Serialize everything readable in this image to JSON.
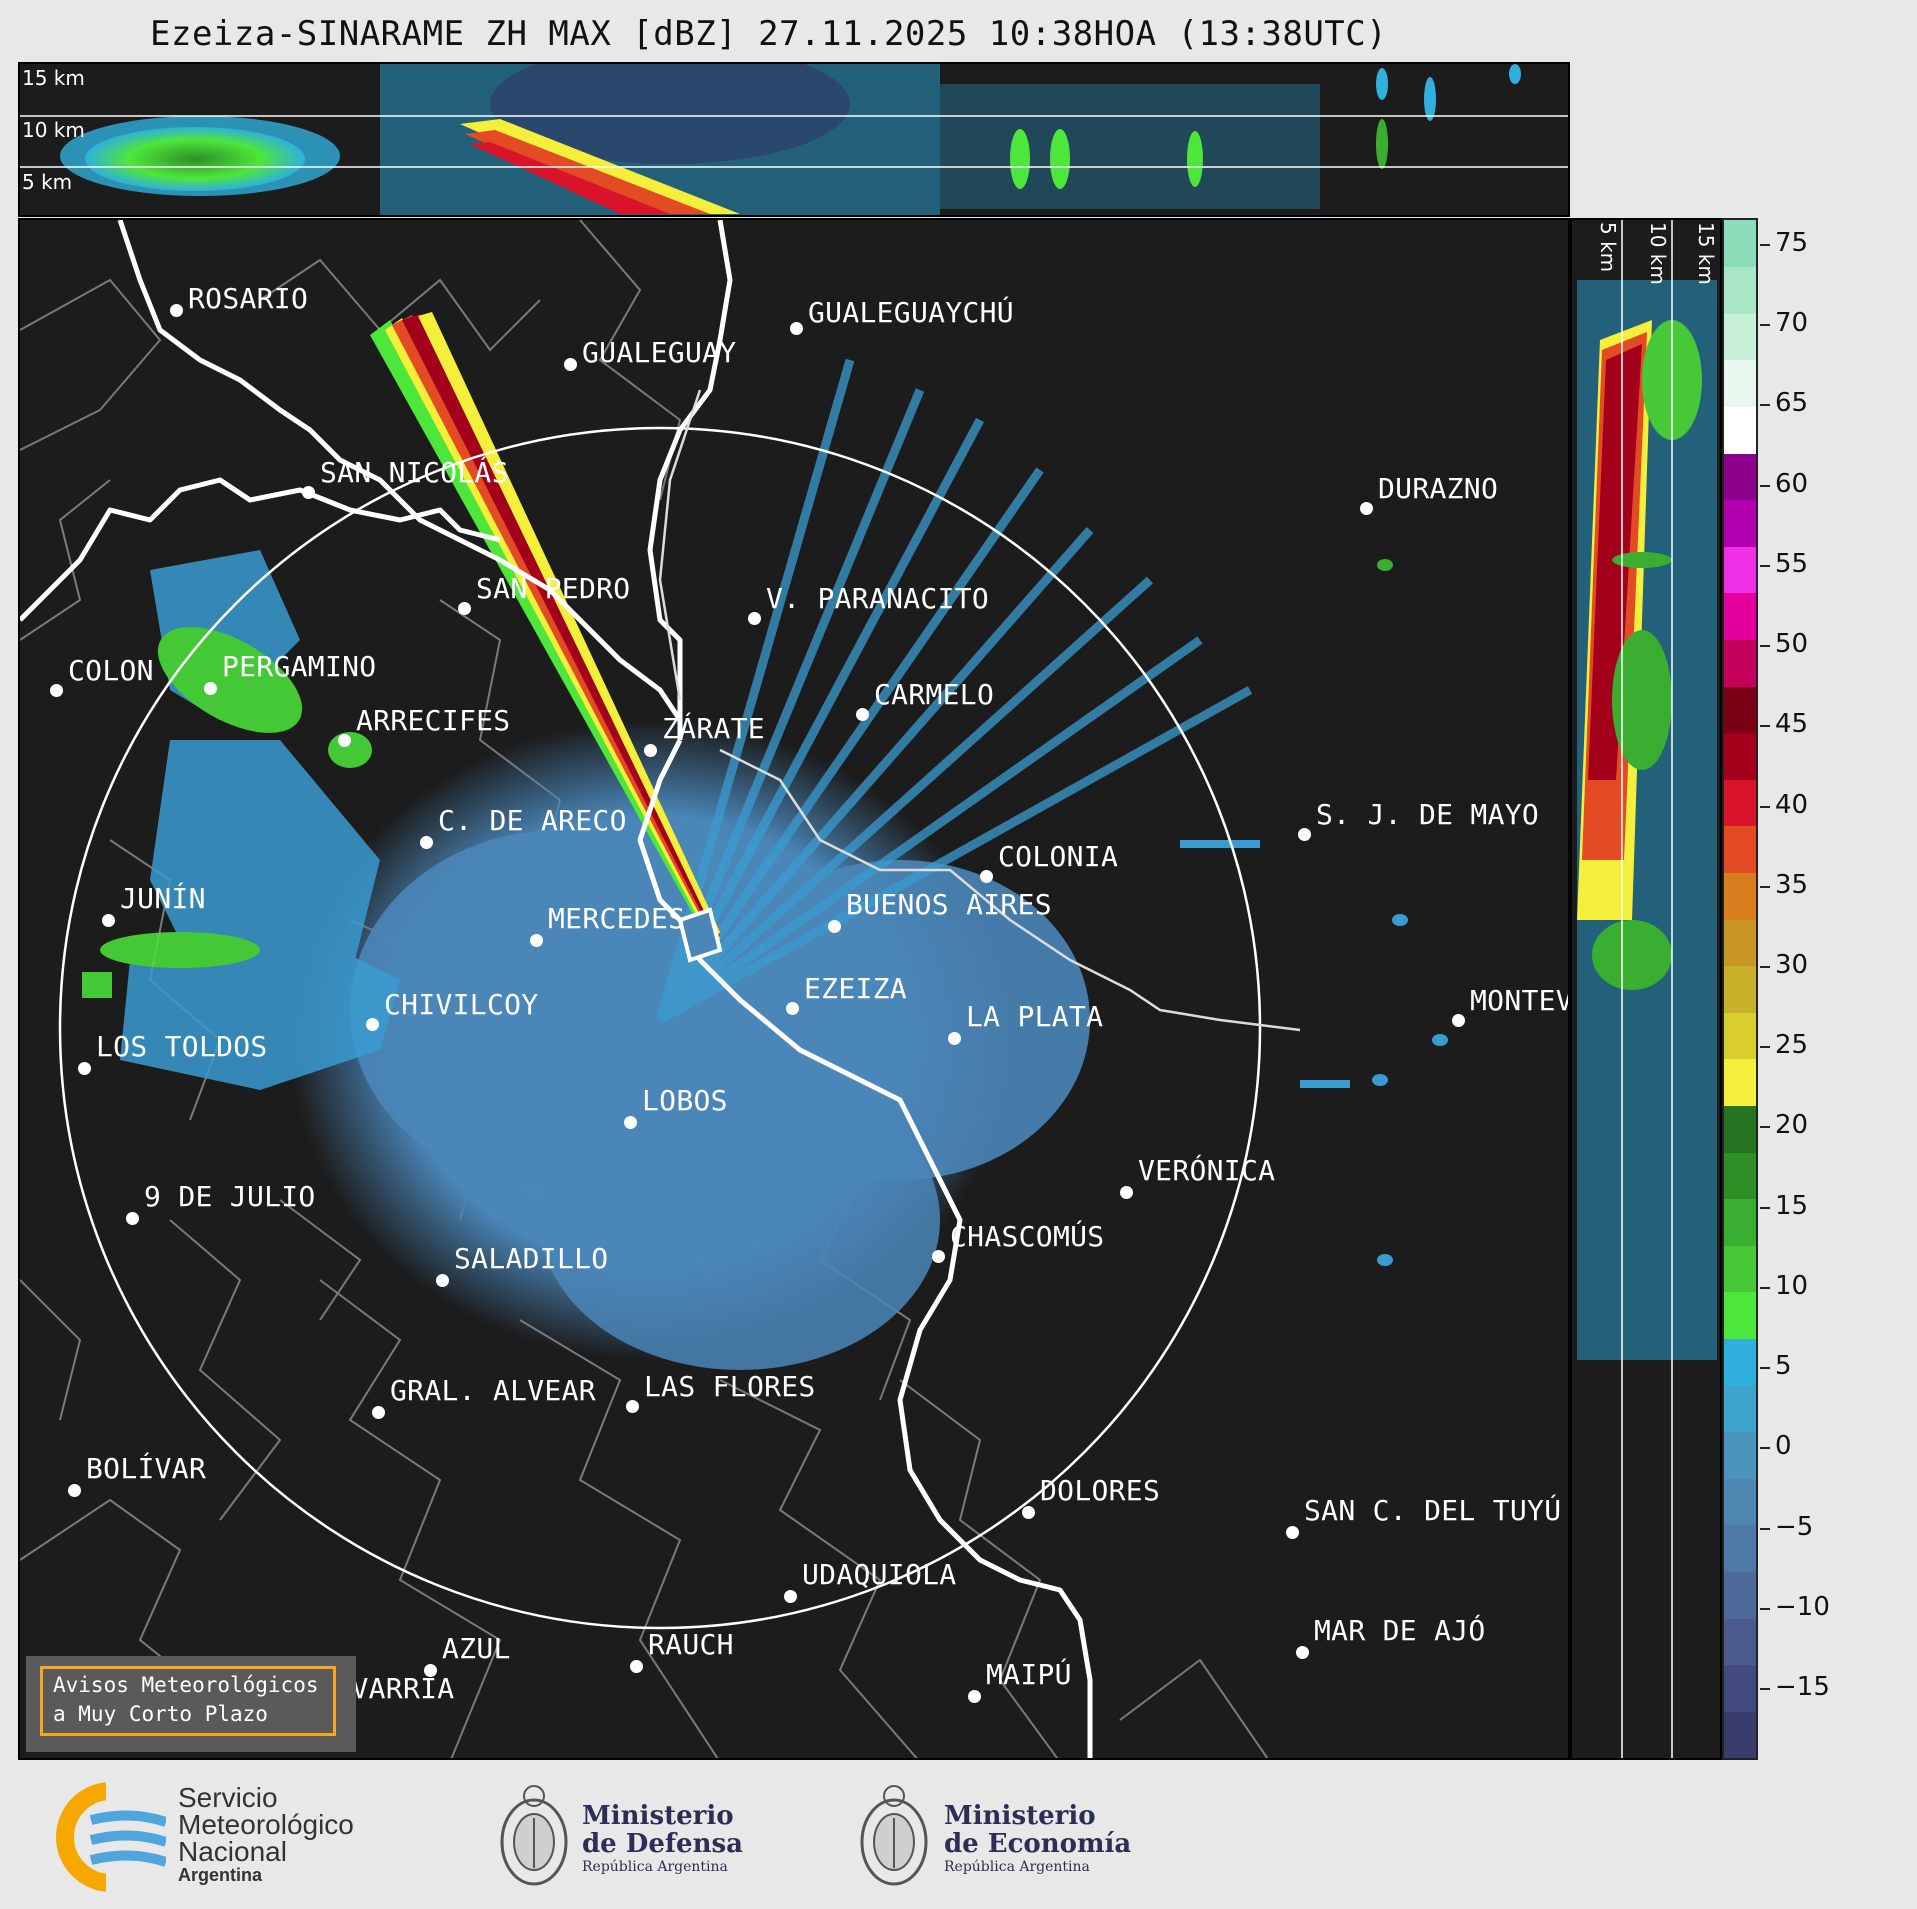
{
  "title": "Ezeiza-SINARAME ZH MAX [dBZ] 27.11.2025 10:38HOA (13:38UTC)",
  "top_panel": {
    "altitudes": [
      "15 km",
      "10 km",
      "5 km"
    ]
  },
  "side_panel": {
    "altitudes": [
      "5 km",
      "10 km",
      "15 km"
    ]
  },
  "cities": [
    {
      "id": "rosario",
      "name": "ROSARIO"
    },
    {
      "id": "gualeguaychu",
      "name": "GUALEGUAYCHÚ"
    },
    {
      "id": "gualeguay",
      "name": "GUALEGUAY"
    },
    {
      "id": "san-nicolas",
      "name": "SAN NICOLÁS"
    },
    {
      "id": "durazno",
      "name": "DURAZNO"
    },
    {
      "id": "san-pedro",
      "name": "SAN PEDRO"
    },
    {
      "id": "paranacito",
      "name": "V. PARANACITO"
    },
    {
      "id": "colon",
      "name": "COLON"
    },
    {
      "id": "pergamino",
      "name": "PERGAMINO"
    },
    {
      "id": "carmelo",
      "name": "CARMELO"
    },
    {
      "id": "arrecifes",
      "name": "ARRECIFES"
    },
    {
      "id": "zarate",
      "name": "ZÁRATE"
    },
    {
      "id": "sj-de-mayo",
      "name": "S. J. DE MAYO"
    },
    {
      "id": "c-de-areco",
      "name": "C. DE ARECO"
    },
    {
      "id": "colonia",
      "name": "COLONIA"
    },
    {
      "id": "buenos-aires",
      "name": "BUENOS AIRES"
    },
    {
      "id": "junin",
      "name": "JUNÍN"
    },
    {
      "id": "mercedes",
      "name": "MERCEDES"
    },
    {
      "id": "ezeiza",
      "name": "EZEIZA"
    },
    {
      "id": "montevideo",
      "name": "MONTEV"
    },
    {
      "id": "chivilcoy",
      "name": "CHIVILCOY"
    },
    {
      "id": "la-plata",
      "name": "LA PLATA"
    },
    {
      "id": "los-toldos",
      "name": "LOS TOLDOS"
    },
    {
      "id": "lobos",
      "name": "LOBOS"
    },
    {
      "id": "veronica",
      "name": "VERÓNICA"
    },
    {
      "id": "9-de-julio",
      "name": "9 DE JULIO"
    },
    {
      "id": "chascomus",
      "name": "CHASCOMÚS"
    },
    {
      "id": "saladillo",
      "name": "SALADILLO"
    },
    {
      "id": "gral-alvear",
      "name": "GRAL. ALVEAR"
    },
    {
      "id": "las-flores",
      "name": "LAS FLORES"
    },
    {
      "id": "bolivar",
      "name": "BOLÍVAR"
    },
    {
      "id": "dolores",
      "name": "DOLORES"
    },
    {
      "id": "san-c-del-tuyu",
      "name": "SAN C. DEL TUYÚ"
    },
    {
      "id": "udaquiola",
      "name": "UDAQUIOLA"
    },
    {
      "id": "azul",
      "name": "AZUL"
    },
    {
      "id": "rauch",
      "name": "RAUCH"
    },
    {
      "id": "mar-de-ajo",
      "name": "MAR DE AJÓ"
    },
    {
      "id": "olavarria",
      "name": "OLAVARRÍA"
    },
    {
      "id": "maipu",
      "name": "MAIPÚ"
    }
  ],
  "colorbar": {
    "unit": "dBZ",
    "ticks": [
      "75",
      "70",
      "65",
      "60",
      "55",
      "50",
      "45",
      "40",
      "35",
      "30",
      "25",
      "20",
      "15",
      "10",
      "5",
      "0",
      "−5",
      "−10",
      "−15"
    ],
    "colors": [
      "#3a3d6b",
      "#434a7e",
      "#4b5b8e",
      "#4e6a9a",
      "#4f78a6",
      "#4d87b2",
      "#4a95bd",
      "#3da5cc",
      "#2fb0dd",
      "#4de63a",
      "#47c937",
      "#3aae30",
      "#2f8f27",
      "#267322",
      "#f4ef3a",
      "#d9ce2e",
      "#c9b12a",
      "#c89624",
      "#d97e1e",
      "#e24b23",
      "#d9142a",
      "#a3001b",
      "#7a0013",
      "#c5005a",
      "#e4009f",
      "#f030e6",
      "#b000b0",
      "#8c008c",
      "#ffffff",
      "#e8f8ef",
      "#c8efd8",
      "#a8e6c7",
      "#8cddba"
    ]
  },
  "alert": {
    "line1": "Avisos Meteorológicos",
    "line2": "a Muy Corto Plazo"
  },
  "logos": {
    "smn": {
      "line1": "Servicio",
      "line2": "Meteorológico",
      "line3": "Nacional",
      "line4": "Argentina"
    },
    "defensa": {
      "line1": "Ministerio",
      "line2": "de Defensa",
      "line3": "República Argentina"
    },
    "economia": {
      "line1": "Ministerio",
      "line2": "de Economía",
      "line3": "República Argentina"
    }
  }
}
